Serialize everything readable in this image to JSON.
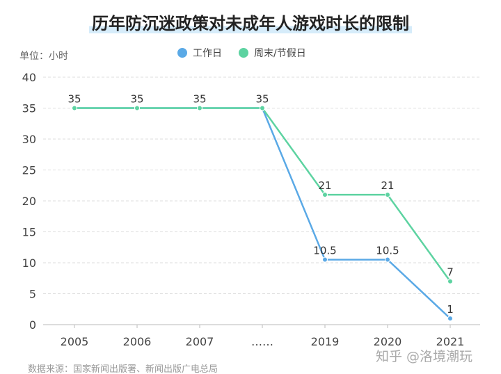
{
  "chart_data": {
    "type": "line",
    "title": "历年防沉迷政策对未成年人游戏时长的限制",
    "unit_label": "单位：小时",
    "categories": [
      "2005",
      "2006",
      "2007",
      "……",
      "2019",
      "2020",
      "2021"
    ],
    "series": [
      {
        "name": "工作日",
        "color": "#5aa9e6",
        "values": [
          35,
          35,
          35,
          35,
          10.5,
          10.5,
          1
        ],
        "labels": [
          "",
          "",
          "",
          "",
          "10.5",
          "10.5",
          "1"
        ]
      },
      {
        "name": "周末/节假日",
        "color": "#5dd3a1",
        "values": [
          35,
          35,
          35,
          35,
          21,
          21,
          7
        ],
        "labels": [
          "35",
          "35",
          "35",
          "35",
          "21",
          "21",
          "7"
        ]
      }
    ],
    "ylim": [
      0,
      40
    ],
    "yticks": [
      0,
      5,
      10,
      15,
      20,
      25,
      30,
      35,
      40
    ],
    "grid": true,
    "legend_position": "top-center"
  },
  "source": "数据来源：国家新闻出版署、新闻出版广电总局",
  "watermark": "知乎 @洛境潮玩"
}
